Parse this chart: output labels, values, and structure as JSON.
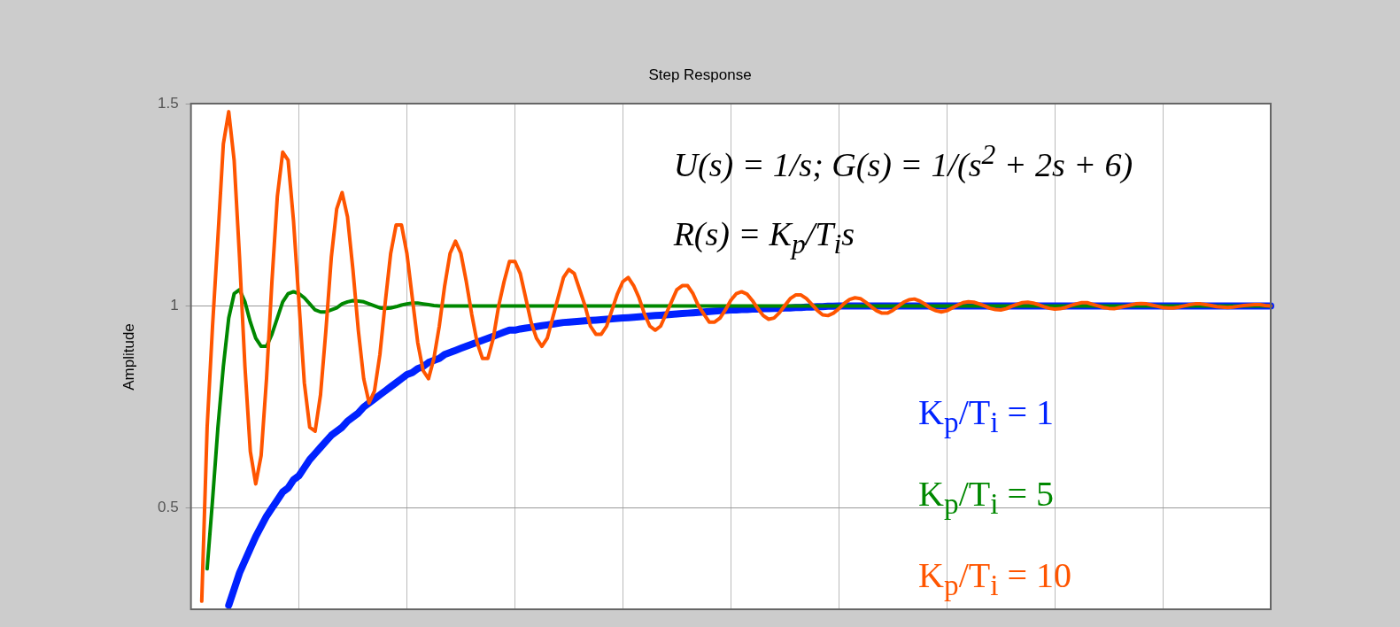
{
  "chart_data": {
    "type": "line",
    "title": "Step Response",
    "ylabel": "Amplitude",
    "annotations": [
      "U(s) = 1/s;    G(s) = 1/(s$^{2}$ + 2s + 6)",
      "R(s) = K$_{p}$/T$_{i}$s"
    ],
    "categories": [
      null,
      null,
      null,
      null,
      null,
      null,
      null,
      null,
      null,
      null,
      null,
      null,
      null,
      null,
      null,
      null,
      null,
      null,
      null,
      null,
      null,
      null,
      null,
      null,
      null,
      null,
      null,
      null,
      null,
      null,
      null,
      null,
      null,
      null,
      null,
      null,
      null,
      null,
      null,
      null,
      null,
      null,
      null,
      null,
      null,
      null,
      null,
      null,
      null,
      null,
      null,
      null,
      null,
      null,
      null,
      null,
      null,
      null,
      null,
      null,
      null,
      null,
      null,
      null,
      null,
      null,
      null,
      null,
      null,
      null,
      null,
      null,
      null,
      null,
      null,
      null,
      null,
      null,
      null,
      null,
      null,
      null,
      null,
      null,
      null,
      null,
      null,
      null,
      null,
      null,
      null,
      null,
      null,
      null,
      null,
      null,
      null,
      null,
      null,
      null,
      null,
      null,
      null,
      null,
      null,
      null,
      null,
      null,
      null,
      null,
      null,
      null,
      null,
      null,
      null,
      null,
      null,
      null,
      null,
      null,
      null,
      null,
      null,
      null,
      null,
      null,
      null,
      null,
      null,
      null,
      null,
      null,
      null,
      null,
      null,
      null,
      null,
      null,
      null,
      null,
      null,
      null,
      null,
      null,
      null,
      null,
      null,
      null,
      null,
      null,
      null,
      null,
      null,
      null,
      null,
      null,
      null,
      null,
      null,
      null,
      null,
      null,
      null,
      null,
      null,
      null,
      null,
      null,
      null,
      null,
      null,
      null,
      null,
      null,
      null,
      null,
      null,
      null,
      null,
      null,
      null,
      null,
      null,
      null,
      null,
      null,
      null,
      null,
      null,
      null,
      null,
      null,
      null,
      null,
      null,
      null,
      null,
      null,
      null,
      null,
      null
    ],
    "ylim": [
      0.25,
      1.5
    ],
    "yticks": [
      0.5,
      1,
      1.5
    ],
    "tick_labels": "y",
    "grid": true,
    "series": [
      {
        "name": "K$_{p}$/T$_{i}$ = 1",
        "color": "#0022ff",
        "values": [
          null,
          null,
          null,
          null,
          null,
          null,
          null,
          0.26,
          0.3,
          0.34,
          0.37,
          0.4,
          0.43,
          0.455,
          0.48,
          0.5,
          0.52,
          0.54,
          0.55,
          0.57,
          0.58,
          0.6,
          0.62,
          0.635,
          0.65,
          0.665,
          0.68,
          0.69,
          0.7,
          0.715,
          0.725,
          0.735,
          0.75,
          0.76,
          0.77,
          0.78,
          0.79,
          0.8,
          0.81,
          0.82,
          0.83,
          0.835,
          0.845,
          0.85,
          0.86,
          0.865,
          0.87,
          0.88,
          0.885,
          0.89,
          0.895,
          0.9,
          0.905,
          0.91,
          0.915,
          0.92,
          0.925,
          0.93,
          0.935,
          0.94,
          0.94,
          0.943,
          0.945,
          0.947,
          0.949,
          0.951,
          0.953,
          0.955,
          0.957,
          0.959,
          0.96,
          0.961,
          0.962,
          0.963,
          0.964,
          0.965,
          0.966,
          0.967,
          0.968,
          0.969,
          0.97,
          0.971,
          0.972,
          0.973,
          0.974,
          0.975,
          0.976,
          0.977,
          0.978,
          0.979,
          0.98,
          0.981,
          0.982,
          0.983,
          0.984,
          0.985,
          0.986,
          0.987,
          0.988,
          0.989,
          0.99,
          0.99,
          0.991,
          0.991,
          0.992,
          0.992,
          0.993,
          0.993,
          0.994,
          0.994,
          0.995,
          0.995,
          0.996,
          0.996,
          0.997,
          0.997,
          0.998,
          0.998,
          0.999,
          0.999,
          1,
          1,
          1,
          1,
          1,
          1,
          1,
          1,
          1,
          1,
          1,
          1,
          1,
          1,
          1,
          1,
          1,
          1,
          1,
          1,
          1,
          1,
          1,
          1,
          1,
          1,
          1,
          1,
          1,
          1,
          1,
          1,
          1,
          1,
          1,
          1,
          1,
          1,
          1,
          1,
          1,
          1,
          1,
          1,
          1,
          1,
          1,
          1,
          1,
          1,
          1,
          1,
          1,
          1,
          1,
          1,
          1,
          1,
          1,
          1,
          1,
          1,
          1,
          1,
          1,
          1,
          1,
          1,
          1,
          1,
          1,
          1,
          1,
          1,
          1,
          1,
          1,
          1,
          1,
          1,
          1
        ]
      },
      {
        "name": "K$_{p}$/T$_{i}$ = 5",
        "color": "#008800",
        "values": [
          null,
          null,
          null,
          0.35,
          0.52,
          0.7,
          0.85,
          0.97,
          1.03,
          1.04,
          1.01,
          0.96,
          0.92,
          0.9,
          0.9,
          0.93,
          0.97,
          1.01,
          1.03,
          1.035,
          1.03,
          1.02,
          1.005,
          0.99,
          0.985,
          0.985,
          0.99,
          0.995,
          1.005,
          1.01,
          1.013,
          1.012,
          1.01,
          1.005,
          1.0,
          0.995,
          0.994,
          0.995,
          0.998,
          1.002,
          1.005,
          1.007,
          1.007,
          1.005,
          1.003,
          1.001,
          1,
          1,
          1,
          1,
          1,
          1,
          1,
          1,
          1,
          1,
          1,
          1,
          1,
          1,
          1,
          1,
          1,
          1,
          1,
          1,
          1,
          1,
          1,
          1,
          1,
          1,
          1,
          1,
          1,
          1,
          1,
          1,
          1,
          1,
          1,
          1,
          1,
          1,
          1,
          1,
          1,
          1,
          1,
          1,
          1,
          1,
          1,
          1,
          1,
          1,
          1,
          1,
          1,
          1,
          1,
          1,
          1,
          1,
          1,
          1,
          1,
          1,
          1,
          1,
          1,
          1,
          1,
          1,
          1,
          1,
          1,
          1,
          1,
          1,
          1,
          1,
          1,
          1,
          1,
          1,
          1,
          1,
          1,
          1,
          1,
          1,
          1,
          1,
          1,
          1,
          1,
          1,
          1,
          1,
          1,
          1,
          1,
          1,
          1,
          1,
          1,
          1,
          1,
          1,
          1,
          1,
          1,
          1,
          1,
          1,
          1,
          1,
          1,
          1,
          1,
          1,
          1,
          1,
          1,
          1,
          1,
          1,
          1,
          1,
          1,
          1,
          1,
          1,
          1,
          1,
          1,
          1,
          1,
          1,
          1,
          1,
          1,
          1,
          1,
          1,
          1,
          1,
          1,
          1,
          1,
          1,
          1,
          1,
          1,
          1,
          1,
          1,
          1,
          1,
          1
        ]
      },
      {
        "name": "K$_{p}$/T$_{i}$ = 10",
        "color": "#ff5500",
        "values": [
          null,
          null,
          0.27,
          0.7,
          0.95,
          1.17,
          1.4,
          1.48,
          1.36,
          1.12,
          0.85,
          0.64,
          0.56,
          0.63,
          0.82,
          1.06,
          1.27,
          1.38,
          1.36,
          1.21,
          1.01,
          0.81,
          0.7,
          0.69,
          0.78,
          0.94,
          1.12,
          1.24,
          1.28,
          1.22,
          1.09,
          0.94,
          0.82,
          0.76,
          0.79,
          0.88,
          1.01,
          1.13,
          1.2,
          1.2,
          1.13,
          1.02,
          0.91,
          0.84,
          0.82,
          0.87,
          0.95,
          1.05,
          1.13,
          1.16,
          1.13,
          1.06,
          0.98,
          0.91,
          0.87,
          0.87,
          0.92,
          1.0,
          1.06,
          1.11,
          1.11,
          1.08,
          1.02,
          0.96,
          0.92,
          0.9,
          0.92,
          0.97,
          1.02,
          1.07,
          1.09,
          1.08,
          1.04,
          1.0,
          0.95,
          0.93,
          0.93,
          0.95,
          0.99,
          1.03,
          1.06,
          1.07,
          1.05,
          1.02,
          0.98,
          0.95,
          0.94,
          0.95,
          0.98,
          1.01,
          1.04,
          1.05,
          1.05,
          1.03,
          1.0,
          0.98,
          0.96,
          0.96,
          0.97,
          0.99,
          1.014,
          1.03,
          1.035,
          1.029,
          1.013,
          0.993,
          0.976,
          0.967,
          0.97,
          0.983,
          1.001,
          1.018,
          1.027,
          1.027,
          1.018,
          1.004,
          0.989,
          0.978,
          0.976,
          0.982,
          0.993,
          1.006,
          1.016,
          1.02,
          1.018,
          1.009,
          0.998,
          0.988,
          0.982,
          0.982,
          0.989,
          0.999,
          1.009,
          1.015,
          1.017,
          1.012,
          1.004,
          0.994,
          0.988,
          0.985,
          0.988,
          0.995,
          1.002,
          1.008,
          1.01,
          1.009,
          1.005,
          1.0,
          0.994,
          0.991,
          0.99,
          0.993,
          0.999,
          1.004,
          1.008,
          1.009,
          1.007,
          1.003,
          0.998,
          0.994,
          0.992,
          0.993,
          0.996,
          1.001,
          1.005,
          1.008,
          1.008,
          1.004,
          1.0,
          0.996,
          0.994,
          0.993,
          0.996,
          0.999,
          1.002,
          1.005,
          1.006,
          1.005,
          1.002,
          0.999,
          0.996,
          0.995,
          0.995,
          0.997,
          1.0,
          1.003,
          1.005,
          1.005,
          1.003,
          1.001,
          0.998,
          0.997,
          0.996,
          0.997,
          0.999,
          1.001,
          1.002,
          1.003,
          1.003,
          1.001,
          1.0
        ]
      }
    ]
  }
}
